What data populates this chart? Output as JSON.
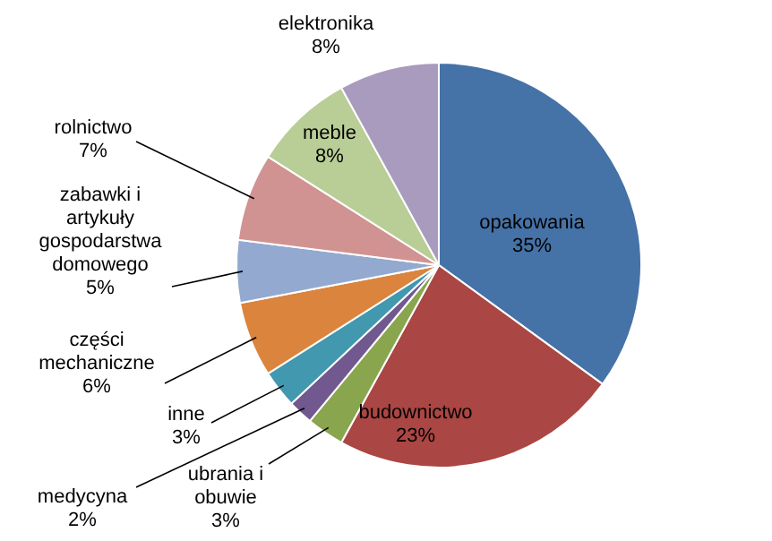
{
  "chart_data": {
    "type": "pie",
    "categories": [
      "opakowania",
      "budownictwo",
      "ubrania i obuwie",
      "medycyna",
      "inne",
      "części mechaniczne",
      "zabawki i artykuły gospodarstwa domowego",
      "rolnictwo",
      "meble",
      "elektronika"
    ],
    "values": [
      35,
      23,
      3,
      2,
      3,
      6,
      5,
      7,
      8,
      8
    ],
    "value_labels": [
      "35%",
      "23%",
      "3%",
      "2%",
      "3%",
      "6%",
      "5%",
      "7%",
      "8%",
      "8%"
    ],
    "colors": [
      "#4572a7",
      "#aa4643",
      "#89a54e",
      "#71588f",
      "#4198af",
      "#db843d",
      "#93a9cf",
      "#d19392",
      "#b9cd96",
      "#a99bbd"
    ],
    "legend": false
  }
}
